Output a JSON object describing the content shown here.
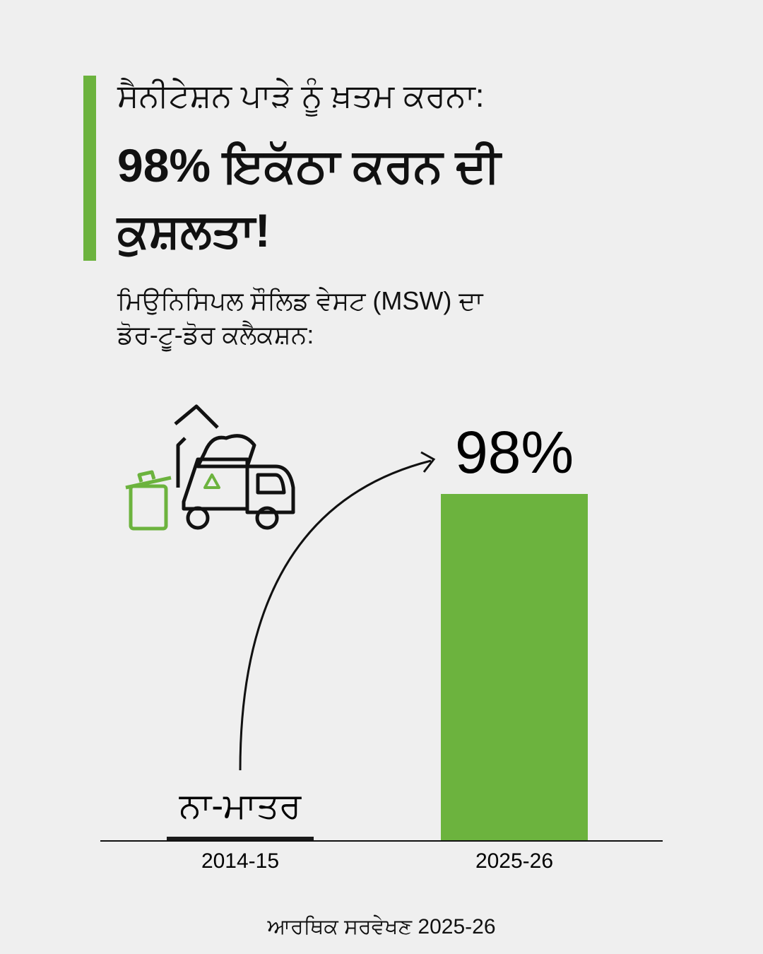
{
  "header": {
    "title_line1": "ਸੈਨੀਟੇਸ਼ਨ ਪਾੜੇ ਨੂੰ ਖ਼ਤਮ ਕਰਨਾ:",
    "title_line2": "98% ਇਕੱਠਾ ਕਰਨ ਦੀ ਕੁਸ਼ਲਤਾ!",
    "subtitle": "ਮਿਉਨਿਸਿਪਲ ਸੌਲਿਡ ਵੇਸਟ (MSW) ਦਾ ਡੋਰ-ਟੂ-ਡੋਰ ਕਲੈਕਸ਼ਨ:"
  },
  "chart_data": {
    "type": "bar",
    "categories": [
      "2014-15",
      "2025-26"
    ],
    "values": [
      1,
      98
    ],
    "value_labels": [
      "ਨਾ-ਮਾਤਰ",
      "98%"
    ],
    "colors": [
      "#1a1a1a",
      "#6cb33e"
    ],
    "ylim": [
      0,
      100
    ]
  },
  "footer": {
    "source": "ਆਰਥਿਕ ਸਰਵੇਖਣ 2025-26"
  }
}
